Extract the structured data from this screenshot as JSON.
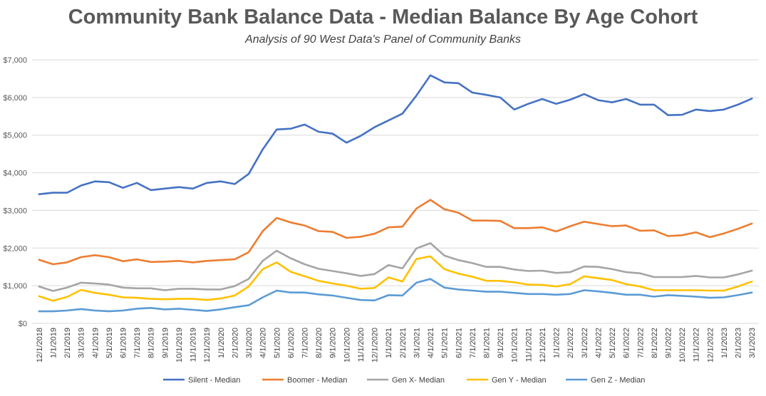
{
  "chart_data": {
    "type": "line",
    "title": "Community Bank Balance Data - Median Balance By Age Cohort",
    "subtitle": "Analysis of 90 West Data's Panel of Community Banks",
    "xlabel": "",
    "ylabel": "",
    "ylim": [
      0,
      7000
    ],
    "yticks": [
      "$0",
      "$1,000",
      "$2,000",
      "$3,000",
      "$4,000",
      "$5,000",
      "$6,000",
      "$7,000"
    ],
    "grid": true,
    "legend": "bottom",
    "categories": [
      "12/1/2018",
      "1/1/2019",
      "2/1/2019",
      "3/1/2019",
      "4/1/2019",
      "5/1/2019",
      "6/1/2019",
      "7/1/2019",
      "8/1/2019",
      "9/1/2019",
      "10/1/2019",
      "11/1/2019",
      "12/1/2019",
      "1/1/2020",
      "2/1/2020",
      "3/1/2020",
      "4/1/2020",
      "5/1/2020",
      "6/1/2020",
      "7/1/2020",
      "8/1/2020",
      "9/1/2020",
      "10/1/2020",
      "11/1/2020",
      "12/1/2020",
      "1/1/2021",
      "2/1/2021",
      "3/1/2021",
      "4/1/2021",
      "5/1/2021",
      "6/1/2021",
      "7/1/2021",
      "8/1/2021",
      "9/1/2021",
      "10/1/2021",
      "11/1/2021",
      "12/1/2021",
      "1/1/2022",
      "2/1/2022",
      "3/1/2022",
      "4/1/2022",
      "5/1/2022",
      "6/1/2022",
      "7/1/2022",
      "8/1/2022",
      "9/1/2022",
      "10/1/2022",
      "11/1/2022",
      "12/1/2022",
      "1/1/2023",
      "2/1/2023",
      "3/1/2023"
    ],
    "series": [
      {
        "name": "Silent - Median",
        "color": "#4472C4",
        "values": [
          3430,
          3470,
          3470,
          3660,
          3770,
          3750,
          3600,
          3730,
          3540,
          3580,
          3620,
          3580,
          3730,
          3770,
          3700,
          3970,
          4620,
          5150,
          5170,
          5280,
          5090,
          5040,
          4800,
          4980,
          5210,
          5390,
          5570,
          6050,
          6590,
          6400,
          6380,
          6130,
          6070,
          6000,
          5680,
          5830,
          5960,
          5830,
          5940,
          6090,
          5930,
          5870,
          5960,
          5810,
          5810,
          5530,
          5540,
          5680,
          5640,
          5680,
          5810,
          5970
        ]
      },
      {
        "name": "Boomer - Median",
        "color": "#ED7D31",
        "values": [
          1690,
          1570,
          1620,
          1760,
          1810,
          1760,
          1650,
          1700,
          1630,
          1640,
          1660,
          1620,
          1660,
          1680,
          1700,
          1890,
          2450,
          2800,
          2680,
          2600,
          2450,
          2430,
          2270,
          2300,
          2380,
          2550,
          2570,
          3050,
          3280,
          3030,
          2940,
          2730,
          2730,
          2720,
          2530,
          2530,
          2550,
          2440,
          2580,
          2700,
          2640,
          2580,
          2600,
          2460,
          2470,
          2320,
          2340,
          2420,
          2290,
          2390,
          2510,
          2650
        ]
      },
      {
        "name": "Gen X- Median",
        "color": "#A5A5A5",
        "values": [
          980,
          860,
          950,
          1080,
          1060,
          1030,
          950,
          930,
          930,
          880,
          920,
          920,
          900,
          900,
          990,
          1180,
          1660,
          1930,
          1730,
          1570,
          1450,
          1390,
          1330,
          1260,
          1310,
          1550,
          1460,
          1990,
          2130,
          1800,
          1680,
          1600,
          1500,
          1500,
          1430,
          1390,
          1400,
          1340,
          1360,
          1510,
          1500,
          1440,
          1360,
          1330,
          1230,
          1230,
          1230,
          1260,
          1220,
          1220,
          1300,
          1400
        ]
      },
      {
        "name": "Gen Y - Median",
        "color": "#FFC000",
        "values": [
          720,
          600,
          700,
          890,
          810,
          760,
          690,
          680,
          650,
          640,
          650,
          650,
          620,
          660,
          740,
          980,
          1440,
          1620,
          1370,
          1250,
          1130,
          1060,
          1000,
          920,
          940,
          1220,
          1110,
          1710,
          1780,
          1440,
          1320,
          1240,
          1130,
          1130,
          1090,
          1030,
          1020,
          980,
          1040,
          1250,
          1200,
          1150,
          1040,
          980,
          880,
          880,
          880,
          880,
          870,
          870,
          980,
          1110
        ]
      },
      {
        "name": "Gen Z - Median",
        "color": "#5B9BD5",
        "values": [
          320,
          320,
          340,
          380,
          340,
          320,
          340,
          390,
          410,
          370,
          390,
          360,
          330,
          370,
          430,
          480,
          690,
          870,
          820,
          820,
          770,
          740,
          680,
          620,
          610,
          750,
          740,
          1080,
          1180,
          950,
          900,
          870,
          840,
          840,
          810,
          780,
          780,
          760,
          780,
          880,
          850,
          810,
          760,
          760,
          710,
          750,
          730,
          710,
          680,
          690,
          750,
          820
        ]
      }
    ]
  }
}
